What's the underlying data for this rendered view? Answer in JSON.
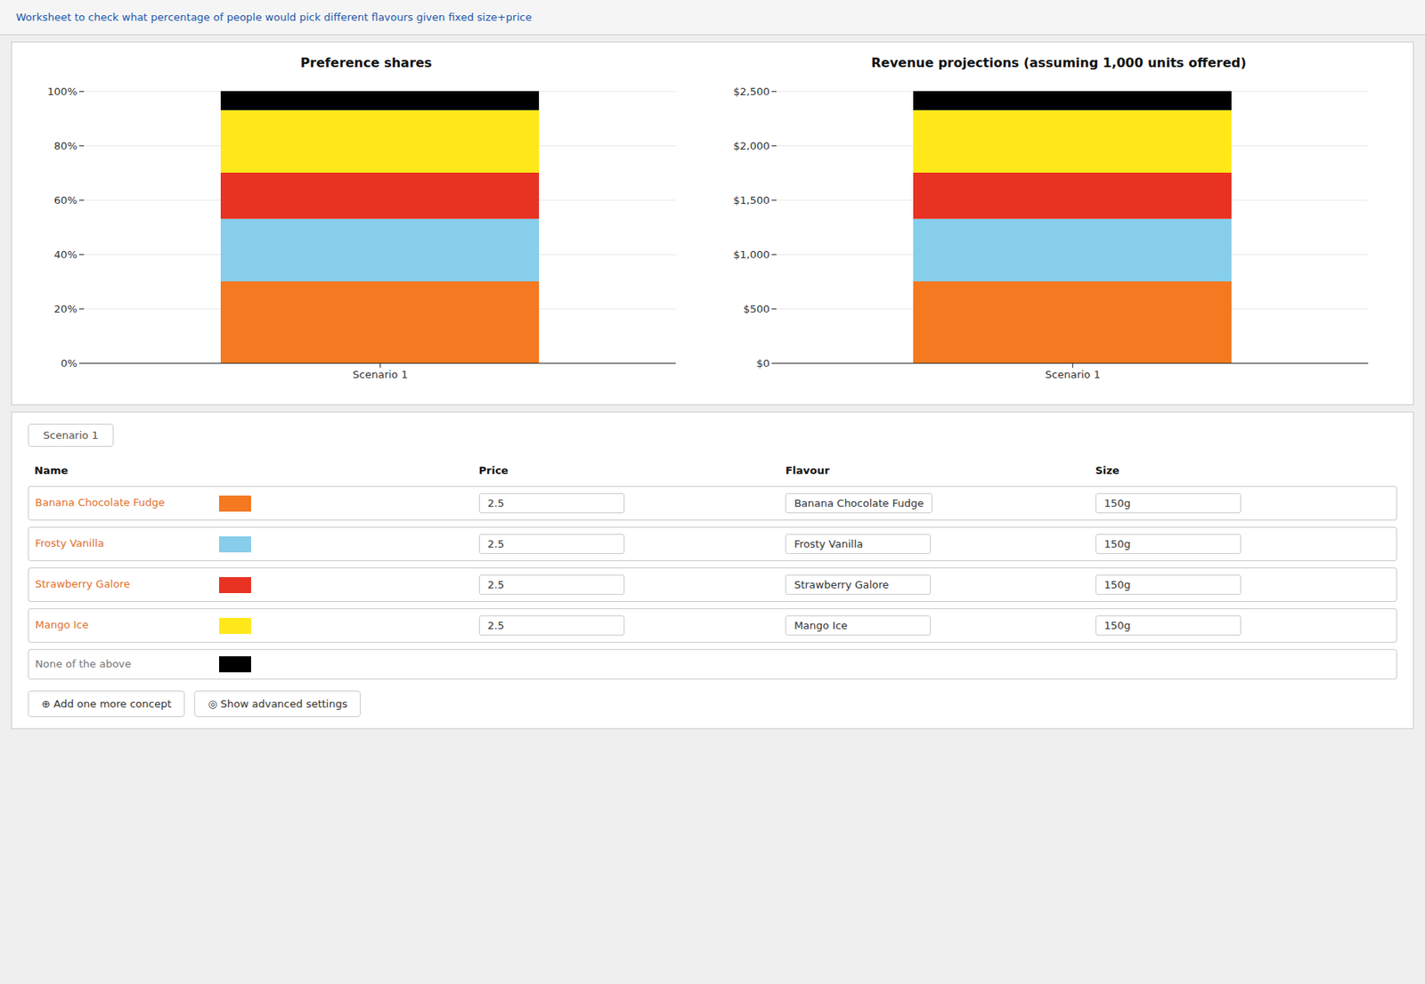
{
  "chart_data": [
    {
      "type": "bar",
      "title": "Preference shares",
      "stacked": true,
      "grid": true,
      "categories": [
        "Scenario 1"
      ],
      "series": [
        {
          "name": "Banana Chocolate Fudge",
          "color": "#F47920",
          "values": [
            0.3
          ]
        },
        {
          "name": "Frosty Vanilla",
          "color": "#87CEEB",
          "values": [
            0.23
          ]
        },
        {
          "name": "Strawberry Galore",
          "color": "#E83323",
          "values": [
            0.17
          ]
        },
        {
          "name": "Mango Ice",
          "color": "#FFE81A",
          "values": [
            0.23
          ]
        },
        {
          "name": "None of the above",
          "color": "#000000",
          "values": [
            0.07
          ]
        }
      ],
      "ylim": [
        0,
        1.0
      ],
      "yticks": [
        {
          "value": 0,
          "label": "0%"
        },
        {
          "value": 0.2,
          "label": "20%"
        },
        {
          "value": 0.4,
          "label": "40%"
        },
        {
          "value": 0.6,
          "label": "60%"
        },
        {
          "value": 0.8,
          "label": "80%"
        },
        {
          "value": 1.0,
          "label": "100%"
        }
      ],
      "annotations": [
        "Worksheet to check what percentage of people would pick different flavours given fixed size+price",
        "Scenario 1",
        "Name",
        "Price",
        "Flavour",
        "Size",
        "2.5",
        "150g",
        "⊕ Add one more concept",
        "◎ Show advanced settings"
      ]
    },
    {
      "type": "bar",
      "title": "Revenue projections (assuming 1,000 units offered)",
      "stacked": true,
      "grid": true,
      "categories": [
        "Scenario 1"
      ],
      "series": [
        {
          "name": "Banana Chocolate Fudge",
          "color": "#F47920",
          "values": [
            750
          ]
        },
        {
          "name": "Frosty Vanilla",
          "color": "#87CEEB",
          "values": [
            575
          ]
        },
        {
          "name": "Strawberry Galore",
          "color": "#E83323",
          "values": [
            425
          ]
        },
        {
          "name": "Mango Ice",
          "color": "#FFE81A",
          "values": [
            575
          ]
        },
        {
          "name": "None of the above",
          "color": "#000000",
          "values": [
            175
          ]
        }
      ],
      "ylim": [
        0,
        2500
      ],
      "yticks": [
        {
          "value": 0,
          "label": "$0"
        },
        {
          "value": 500,
          "label": "$500"
        },
        {
          "value": 1000,
          "label": "$1,000"
        },
        {
          "value": 1500,
          "label": "$1,500"
        },
        {
          "value": 2000,
          "label": "$2,000"
        },
        {
          "value": 2500,
          "label": "$2,500"
        }
      ]
    }
  ]
}
